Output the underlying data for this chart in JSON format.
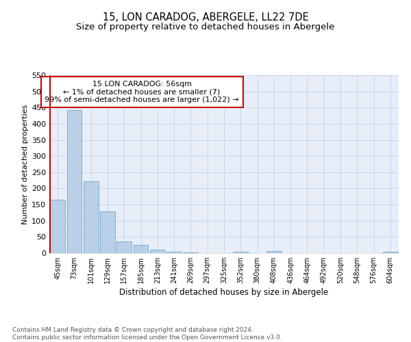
{
  "title": "15, LON CARADOG, ABERGELE, LL22 7DE",
  "subtitle": "Size of property relative to detached houses in Abergele",
  "xlabel": "Distribution of detached houses by size in Abergele",
  "ylabel": "Number of detached properties",
  "bar_labels": [
    "45sqm",
    "73sqm",
    "101sqm",
    "129sqm",
    "157sqm",
    "185sqm",
    "213sqm",
    "241sqm",
    "269sqm",
    "297sqm",
    "325sqm",
    "352sqm",
    "380sqm",
    "408sqm",
    "436sqm",
    "464sqm",
    "492sqm",
    "520sqm",
    "548sqm",
    "576sqm",
    "604sqm"
  ],
  "bar_values": [
    165,
    443,
    222,
    129,
    37,
    25,
    11,
    5,
    3,
    0,
    0,
    5,
    0,
    6,
    0,
    0,
    0,
    0,
    0,
    0,
    5
  ],
  "bar_color": "#b8d0e8",
  "bar_edge_color": "#6fa8d0",
  "annotation_line1": "15 LON CARADOG: 56sqm",
  "annotation_line2": "← 1% of detached houses are smaller (7)",
  "annotation_line3": "99% of semi-detached houses are larger (1,022) →",
  "annotation_box_color": "#cc0000",
  "ylim": [
    0,
    550
  ],
  "yticks": [
    0,
    50,
    100,
    150,
    200,
    250,
    300,
    350,
    400,
    450,
    500,
    550
  ],
  "grid_color": "#c8d4e8",
  "bg_color": "#e8eef8",
  "footnote": "Contains HM Land Registry data © Crown copyright and database right 2024.\nContains public sector information licensed under the Open Government Licence v3.0.",
  "title_fontsize": 10.5,
  "subtitle_fontsize": 9.5,
  "footnote_fontsize": 6.5
}
